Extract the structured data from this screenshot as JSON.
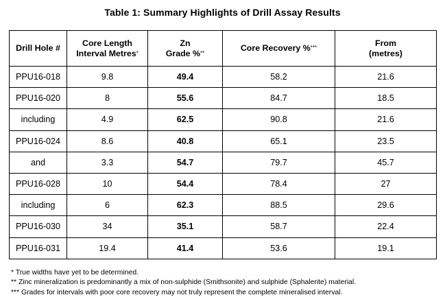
{
  "title": "Table 1: Summary Highlights of Drill Assay Results",
  "table": {
    "headers": {
      "drill_hole": "Drill Hole #",
      "core_length_line1": "Core Length",
      "core_length_line2": "Interval Metres",
      "core_length_mark": "*",
      "zn_line1": "Zn",
      "zn_line2": "Grade %",
      "zn_mark": "**",
      "core_recovery": "Core Recovery %",
      "core_recovery_mark": "***",
      "from_line1": "From",
      "from_line2": "(metres)"
    },
    "rows": [
      {
        "hole": "PPU16-018",
        "length": "9.8",
        "zn": "49.4",
        "recovery": "58.2",
        "from": "21.6"
      },
      {
        "hole": "PPU16-020",
        "length": "8",
        "zn": "55.6",
        "recovery": "84.7",
        "from": "18.5"
      },
      {
        "hole": "including",
        "length": "4.9",
        "zn": "62.5",
        "recovery": "90.8",
        "from": "21.6"
      },
      {
        "hole": "PPU16-024",
        "length": "8.6",
        "zn": "40.8",
        "recovery": "65.1",
        "from": "23.5"
      },
      {
        "hole": "and",
        "length": "3.3",
        "zn": "54.7",
        "recovery": "79.7",
        "from": "45.7"
      },
      {
        "hole": "PPU16-028",
        "length": "10",
        "zn": "54.4",
        "recovery": "78.4",
        "from": "27"
      },
      {
        "hole": "including",
        "length": "6",
        "zn": "62.3",
        "recovery": "88.5",
        "from": "29.6"
      },
      {
        "hole": "PPU16-030",
        "length": "34",
        "zn": "35.1",
        "recovery": "58.7",
        "from": "22.4"
      },
      {
        "hole": "PPU16-031",
        "length": "19.4",
        "zn": "41.4",
        "recovery": "53.6",
        "from": "19.1"
      }
    ]
  },
  "footnotes": [
    "*  True widths have yet to be determined.",
    "** Zinc mineralization is predominantly a mix of non-sulphide (Smithsonite) and sulphide (Sphalerite) material.",
    "*** Grades for intervals with poor core recovery may not truly represent the complete mineralised interval."
  ]
}
